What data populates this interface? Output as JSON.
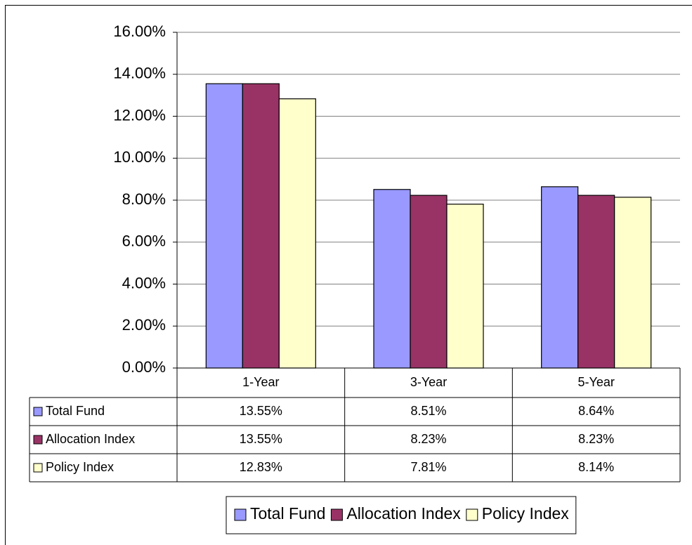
{
  "chart_data": {
    "type": "bar",
    "categories": [
      "1-Year",
      "3-Year",
      "5-Year"
    ],
    "series": [
      {
        "name": "Total Fund",
        "color": "#9999ff",
        "values": [
          13.55,
          8.51,
          8.64
        ],
        "value_labels": [
          "13.55%",
          "8.51%",
          "8.64%"
        ]
      },
      {
        "name": "Allocation Index",
        "color": "#993366",
        "values": [
          13.55,
          8.23,
          8.23
        ],
        "value_labels": [
          "13.55%",
          "8.23%",
          "8.23%"
        ]
      },
      {
        "name": "Policy Index",
        "color": "#ffffcc",
        "values": [
          12.83,
          7.81,
          8.14
        ],
        "value_labels": [
          "12.83%",
          "7.81%",
          "8.14%"
        ]
      }
    ],
    "ylim": [
      0,
      16
    ],
    "yticks": [
      {
        "value": 0,
        "label": "0.00%"
      },
      {
        "value": 2,
        "label": "2.00%"
      },
      {
        "value": 4,
        "label": "4.00%"
      },
      {
        "value": 6,
        "label": "6.00%"
      },
      {
        "value": 8,
        "label": "8.00%"
      },
      {
        "value": 10,
        "label": "10.00%"
      },
      {
        "value": 12,
        "label": "12.00%"
      },
      {
        "value": 14,
        "label": "14.00%"
      },
      {
        "value": 16,
        "label": "16.00%"
      }
    ],
    "grid": true,
    "legend": "bottom",
    "data_table": true
  }
}
